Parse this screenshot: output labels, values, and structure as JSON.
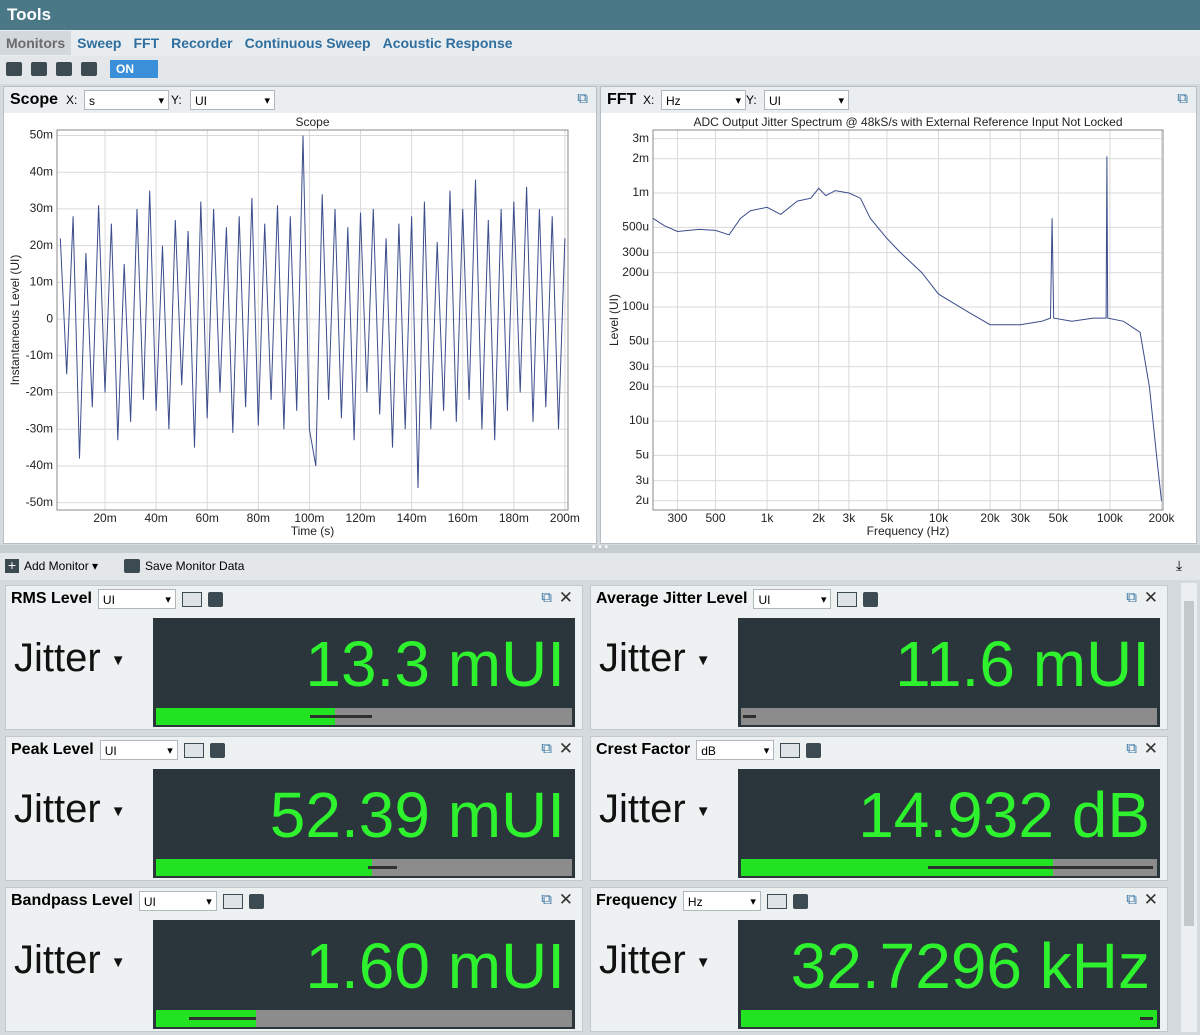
{
  "window_title": "Tools",
  "tabs": [
    "Monitors",
    "Sweep",
    "FFT",
    "Recorder",
    "Continuous Sweep",
    "Acoustic Response"
  ],
  "toggle": "ON",
  "scope": {
    "title": "Scope",
    "x_prefix": "X:",
    "x_unit": "s",
    "y_prefix": "Y:",
    "y_unit": "UI",
    "chart": {
      "type": "line",
      "title": "Scope",
      "x_label": "Time (s)",
      "y_label": "Instantaneous Level (UI)",
      "color": "#3b4d8c",
      "grid": true,
      "log_x": false,
      "log_y": false,
      "xlim": [
        0.0012,
        0.2012
      ],
      "ylim": [
        -0.052,
        0.0515
      ],
      "xticks": [
        {
          "value": 0.02,
          "label": "20m"
        },
        {
          "value": 0.04,
          "label": "40m"
        },
        {
          "value": 0.06,
          "label": "60m"
        },
        {
          "value": 0.08,
          "label": "80m"
        },
        {
          "value": 0.1,
          "label": "100m"
        },
        {
          "value": 0.12,
          "label": "120m"
        },
        {
          "value": 0.14,
          "label": "140m"
        },
        {
          "value": 0.16,
          "label": "160m"
        },
        {
          "value": 0.18,
          "label": "180m"
        },
        {
          "value": 0.2,
          "label": "200m"
        }
      ],
      "yticks": [
        {
          "value": 0.05,
          "label": "50m"
        },
        {
          "value": 0.04,
          "label": "40m"
        },
        {
          "value": 0.03,
          "label": "30m"
        },
        {
          "value": 0.02,
          "label": "20m"
        },
        {
          "value": 0.01,
          "label": "10m"
        },
        0,
        {
          "value": -0.01,
          "label": "-10m"
        },
        {
          "value": -0.02,
          "label": "-20m"
        },
        {
          "value": -0.03,
          "label": "-30m"
        },
        {
          "value": -0.04,
          "label": "-40m"
        },
        {
          "value": -0.05,
          "label": "-50m"
        }
      ],
      "x": [
        0.0025,
        0.005,
        0.0075,
        0.01,
        0.0125,
        0.015,
        0.0175,
        0.02,
        0.0225,
        0.025,
        0.0275,
        0.03,
        0.0325,
        0.035,
        0.0375,
        0.04,
        0.0425,
        0.045,
        0.0475,
        0.05,
        0.0525,
        0.055,
        0.0575,
        0.06,
        0.0625,
        0.065,
        0.0675,
        0.07,
        0.0725,
        0.075,
        0.0775,
        0.08,
        0.0825,
        0.085,
        0.0875,
        0.09,
        0.0925,
        0.095,
        0.0975,
        0.1,
        0.1025,
        0.105,
        0.1075,
        0.11,
        0.1125,
        0.115,
        0.1175,
        0.12,
        0.1225,
        0.125,
        0.1275,
        0.13,
        0.1325,
        0.135,
        0.1375,
        0.14,
        0.1425,
        0.145,
        0.1475,
        0.15,
        0.1525,
        0.155,
        0.1575,
        0.16,
        0.1625,
        0.165,
        0.1675,
        0.17,
        0.1725,
        0.175,
        0.1775,
        0.18,
        0.1825,
        0.185,
        0.1875,
        0.19,
        0.1925,
        0.195,
        0.1975,
        0.2
      ],
      "values": [
        0.022,
        -0.015,
        0.028,
        -0.038,
        0.018,
        -0.024,
        0.031,
        -0.02,
        0.026,
        -0.033,
        0.015,
        -0.028,
        0.03,
        -0.022,
        0.035,
        -0.025,
        0.02,
        -0.03,
        0.027,
        -0.018,
        0.024,
        -0.035,
        0.032,
        -0.027,
        0.03,
        -0.02,
        0.025,
        -0.031,
        0.028,
        -0.024,
        0.033,
        -0.029,
        0.026,
        -0.022,
        0.031,
        -0.03,
        0.028,
        -0.025,
        0.05,
        -0.03,
        -0.04,
        0.034,
        -0.022,
        0.03,
        -0.027,
        0.025,
        -0.033,
        0.029,
        -0.02,
        0.03,
        -0.026,
        0.022,
        -0.035,
        0.026,
        -0.03,
        0.028,
        -0.046,
        0.032,
        -0.03,
        0.021,
        -0.025,
        0.035,
        -0.028,
        0.03,
        -0.022,
        0.038,
        -0.03,
        0.027,
        -0.033,
        0.03,
        -0.025,
        0.032,
        -0.02,
        0.036,
        -0.028,
        0.03,
        -0.024,
        0.028,
        -0.03,
        0.022
      ]
    }
  },
  "fft": {
    "title": "FFT",
    "x_prefix": "X:",
    "x_unit": "Hz",
    "y_prefix": "Y:",
    "y_unit": "UI",
    "chart": {
      "type": "line",
      "title": "ADC Output Jitter Spectrum @ 48kS/s with External Reference Input Not Locked",
      "x_label": "Frequency (Hz)",
      "y_label": "Level (UI)",
      "color": "#3b4d8c",
      "grid": true,
      "log_x": true,
      "log_y": true,
      "xlim": [
        216,
        204000
      ],
      "ylim": [
        1.66e-06,
        0.00357
      ],
      "xticks": [
        300,
        500,
        {
          "value": 1000,
          "label": "1k"
        },
        {
          "value": 2000,
          "label": "2k"
        },
        {
          "value": 3000,
          "label": "3k"
        },
        {
          "value": 5000,
          "label": "5k"
        },
        {
          "value": 10000,
          "label": "10k"
        },
        {
          "value": 20000,
          "label": "20k"
        },
        {
          "value": 30000,
          "label": "30k"
        },
        {
          "value": 50000,
          "label": "50k"
        },
        {
          "value": 100000,
          "label": "100k"
        },
        {
          "value": 200000,
          "label": "200k"
        }
      ],
      "yticks": [
        {
          "value": 0.003,
          "label": "3m"
        },
        {
          "value": 0.002,
          "label": "2m"
        },
        {
          "value": 0.001,
          "label": "1m"
        },
        {
          "value": 0.0005,
          "label": "500u"
        },
        {
          "value": 0.0003,
          "label": "300u"
        },
        {
          "value": 0.0002,
          "label": "200u"
        },
        {
          "value": 0.0001,
          "label": "100u"
        },
        {
          "value": 5e-05,
          "label": "50u"
        },
        {
          "value": 3e-05,
          "label": "30u"
        },
        {
          "value": 2e-05,
          "label": "20u"
        },
        {
          "value": 1e-05,
          "label": "10u"
        },
        {
          "value": 5e-06,
          "label": "5u"
        },
        {
          "value": 3e-06,
          "label": "3u"
        },
        {
          "value": 2e-06,
          "label": "2u"
        }
      ],
      "x": [
        216,
        250,
        300,
        400,
        500,
        600,
        700,
        800,
        1000,
        1200,
        1500,
        1800,
        2000,
        2200,
        2500,
        3000,
        3500,
        4000,
        5000,
        6000,
        8000,
        10000,
        15000,
        20000,
        30000,
        40000,
        45000,
        46000,
        47000,
        60000,
        80000,
        95000,
        96000,
        97000,
        120000,
        150000,
        170000,
        190000,
        200000
      ],
      "values": [
        0.0006,
        0.00052,
        0.00046,
        0.00048,
        0.00047,
        0.00043,
        0.0006,
        0.0007,
        0.00075,
        0.00065,
        0.00085,
        0.0009,
        0.0011,
        0.00095,
        0.00105,
        0.001,
        0.0009,
        0.0006,
        0.0004,
        0.0003,
        0.0002,
        0.00013,
        9e-05,
        7e-05,
        7e-05,
        7.5e-05,
        8e-05,
        0.0006,
        8e-05,
        7.5e-05,
        8e-05,
        8e-05,
        0.0021,
        8e-05,
        7.5e-05,
        6e-05,
        2e-05,
        4e-06,
        2e-06
      ]
    }
  },
  "toolbar": {
    "add_monitor": "Add Monitor",
    "save_data": "Save Monitor Data"
  },
  "monitors": [
    {
      "title": "RMS Level",
      "unit": "UI",
      "channel": "Jitter",
      "reading": "13.3 mUI",
      "meter": {
        "level": 0.43,
        "peak": [
          0.37,
          0.52
        ]
      }
    },
    {
      "title": "Average Jitter Level",
      "unit": "UI",
      "channel": "Jitter",
      "reading": "11.6 mUI",
      "meter": {
        "level": 0,
        "peak": [
          0.005,
          0.035
        ]
      }
    },
    {
      "title": "Peak Level",
      "unit": "UI",
      "channel": "Jitter",
      "reading": "52.39 mUI",
      "meter": {
        "level": 0.52,
        "peak": [
          0.51,
          0.58
        ]
      }
    },
    {
      "title": "Crest Factor",
      "unit": "dB",
      "channel": "Jitter",
      "reading": "14.932 dB",
      "meter": {
        "level": 0.75,
        "peak": [
          0.45,
          0.99
        ]
      }
    },
    {
      "title": "Bandpass Level",
      "unit": "UI",
      "channel": "Jitter",
      "reading": "1.60 mUI",
      "meter": {
        "level": 0.24,
        "peak": [
          0.08,
          0.24
        ]
      }
    },
    {
      "title": "Frequency",
      "unit": "Hz",
      "channel": "Jitter",
      "reading": "32.7296 kHz",
      "meter": {
        "level": 1,
        "peak": [
          0.96,
          0.99
        ]
      }
    }
  ]
}
